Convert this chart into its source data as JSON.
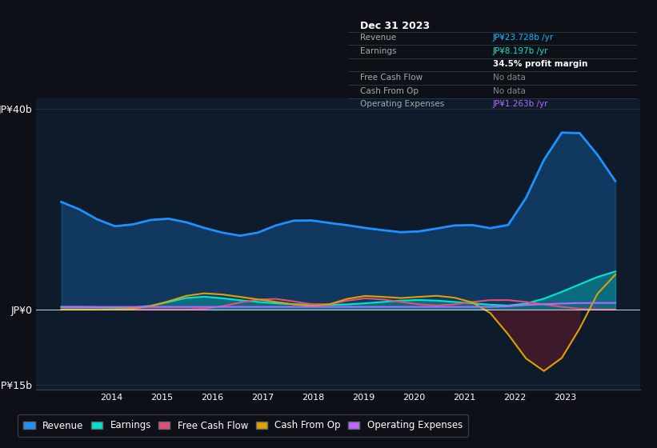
{
  "bg_color": "#0d1117",
  "plot_bg_color": "#0d1b2a",
  "title": "Dec 31 2023",
  "ylabel_40": "JP¥40b",
  "ylabel_0": "JP¥0",
  "ylabel_neg15": "-JP¥15b",
  "x_labels": [
    "2014",
    "2015",
    "2016",
    "2017",
    "2018",
    "2019",
    "2020",
    "2021",
    "2022",
    "2023"
  ],
  "tooltip": {
    "title": "Dec 31 2023",
    "rows": [
      {
        "label": "Revenue",
        "value": "JP¥23.728b /yr",
        "value_color": "#00bfff"
      },
      {
        "label": "Earnings",
        "value": "JP¥8.197b /yr",
        "value_color": "#00e5cc"
      },
      {
        "label": "",
        "value": "34.5% profit margin",
        "value_color": "#ffffff",
        "bold": true
      },
      {
        "label": "Free Cash Flow",
        "value": "No data",
        "value_color": "#888888"
      },
      {
        "label": "Cash From Op",
        "value": "No data",
        "value_color": "#888888"
      },
      {
        "label": "Operating Expenses",
        "value": "JP¥1.263b /yr",
        "value_color": "#bb66ff"
      }
    ]
  },
  "legend": [
    {
      "label": "Revenue",
      "color": "#1e90ff"
    },
    {
      "label": "Earnings",
      "color": "#00e5cc"
    },
    {
      "label": "Free Cash Flow",
      "color": "#e0507a"
    },
    {
      "label": "Cash From Op",
      "color": "#e0a000"
    },
    {
      "label": "Operating Expenses",
      "color": "#bb66ff"
    }
  ],
  "revenue": [
    22,
    20,
    18,
    15.5,
    17,
    18,
    18.5,
    17.5,
    16,
    15.5,
    14,
    15,
    17,
    18,
    18,
    17,
    17,
    16,
    16,
    15,
    15.5,
    16,
    17,
    17,
    16.5,
    14,
    22,
    30,
    38,
    36,
    32,
    23
  ],
  "earnings": [
    0.5,
    0.5,
    0.5,
    0.3,
    0.3,
    0.5,
    1.5,
    2.5,
    2.8,
    2.2,
    1.8,
    1.5,
    1.2,
    1.0,
    1.0,
    0.8,
    1.0,
    1.2,
    1.5,
    1.8,
    2.0,
    1.8,
    1.5,
    1.2,
    1.0,
    0.5,
    1.0,
    2.0,
    3.5,
    5.0,
    6.5,
    8.0
  ],
  "earnings_fill": true,
  "free_cash_flow": [
    0.0,
    0.0,
    0.0,
    0.0,
    0.0,
    0.0,
    0.0,
    0.0,
    0.0,
    0.5,
    1.5,
    2.0,
    2.5,
    1.5,
    1.0,
    0.5,
    2.0,
    2.5,
    2.0,
    1.5,
    1.0,
    0.5,
    1.0,
    1.5,
    2.0,
    2.0,
    1.5,
    1.0,
    0.5,
    0.0,
    0.0,
    0.0
  ],
  "cash_from_op": [
    0.0,
    0.0,
    0.0,
    0.0,
    0.0,
    0.5,
    1.5,
    3.0,
    3.5,
    3.0,
    2.5,
    2.0,
    1.5,
    1.0,
    0.5,
    0.5,
    2.5,
    3.0,
    2.5,
    2.0,
    2.5,
    3.0,
    2.5,
    1.5,
    0.5,
    -5.0,
    -10.0,
    -15.0,
    -10.0,
    -5.0,
    5.0,
    8.0
  ],
  "op_expenses": [
    0.5,
    0.5,
    0.5,
    0.5,
    0.5,
    0.5,
    0.5,
    0.5,
    0.5,
    0.5,
    0.5,
    0.5,
    0.5,
    0.5,
    0.5,
    0.5,
    0.5,
    0.5,
    0.5,
    0.5,
    0.5,
    0.5,
    0.5,
    0.5,
    0.5,
    0.5,
    1.0,
    1.0,
    1.2,
    1.3,
    1.3,
    1.3
  ],
  "ylim": [
    -16,
    42
  ],
  "xlim_min": 2012.5,
  "xlim_max": 2024.5
}
